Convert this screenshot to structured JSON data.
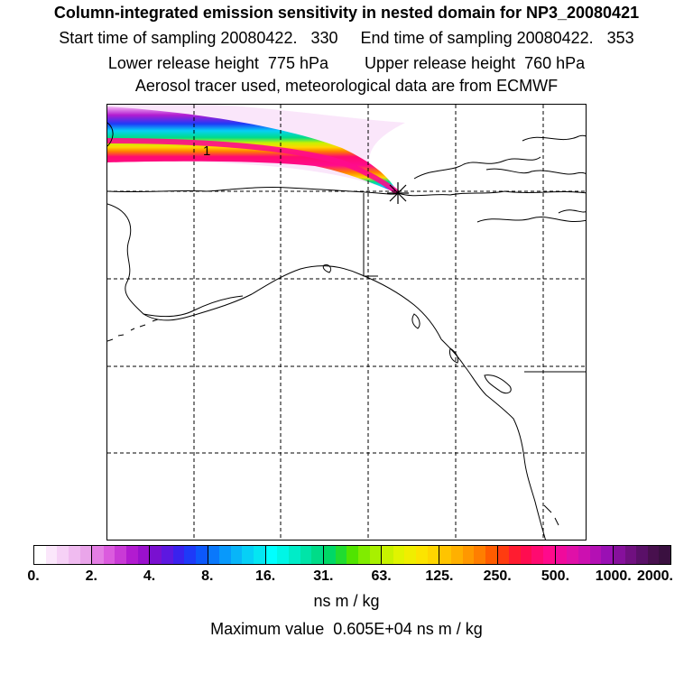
{
  "titles": {
    "line1": "Column-integrated emission sensitivity in nested domain for NP3_20080421",
    "line2": "Start time of sampling 20080422.   330     End time of sampling 20080422.   353",
    "line3": "Lower release height  775 hPa        Upper release height  760 hPa",
    "line4": "Aerosol tracer used, meteorological data are from ECMWF"
  },
  "map": {
    "contour_label": "1",
    "release_marker": "star-marker",
    "colors": {
      "background": "#ffffff",
      "coastline": "#000000",
      "gridline": "#000000"
    }
  },
  "colorbar": {
    "tick_labels": [
      "0.",
      "2.",
      "4.",
      "8.",
      "16.",
      "31.",
      "63.",
      "125.",
      "250.",
      "500.",
      "1000.",
      "2000."
    ],
    "colors": [
      [
        "#ffffff",
        "#fbe7fb",
        "#f6d1f6",
        "#f0bbf0",
        "#eaa5ea"
      ],
      [
        "#e47ee4",
        "#db5bde",
        "#c93ad6",
        "#b21bd0",
        "#9a10cc"
      ],
      [
        "#7a10d0",
        "#5d18e0",
        "#3a22ee",
        "#1e3af8",
        "#0c58fb"
      ],
      [
        "#0a78fb",
        "#0899fb",
        "#08b5f8",
        "#06d0f6",
        "#04e6f2"
      ],
      [
        "#00ffff",
        "#00f6e6",
        "#00ecc8",
        "#00e4a8",
        "#00dc88"
      ],
      [
        "#00d866",
        "#20dc30",
        "#50e400",
        "#80ec00",
        "#a8f000"
      ],
      [
        "#c8f200",
        "#e0f400",
        "#f0ee00",
        "#fce400",
        "#ffd600"
      ],
      [
        "#ffc400",
        "#ffb000",
        "#ff9800",
        "#ff7e00",
        "#ff5c00"
      ],
      [
        "#ff3c10",
        "#ff1c30",
        "#ff0c50",
        "#ff0a70",
        "#ff0a8c"
      ],
      [
        "#f00a9c",
        "#e010a8",
        "#cc10b0",
        "#b410b4",
        "#9a10b4"
      ],
      [
        "#86109c",
        "#701080",
        "#5a1068",
        "#48104e",
        "#3a1040"
      ]
    ],
    "units": "ns m / kg"
  },
  "max_value": "Maximum value  0.605E+04 ns m / kg"
}
